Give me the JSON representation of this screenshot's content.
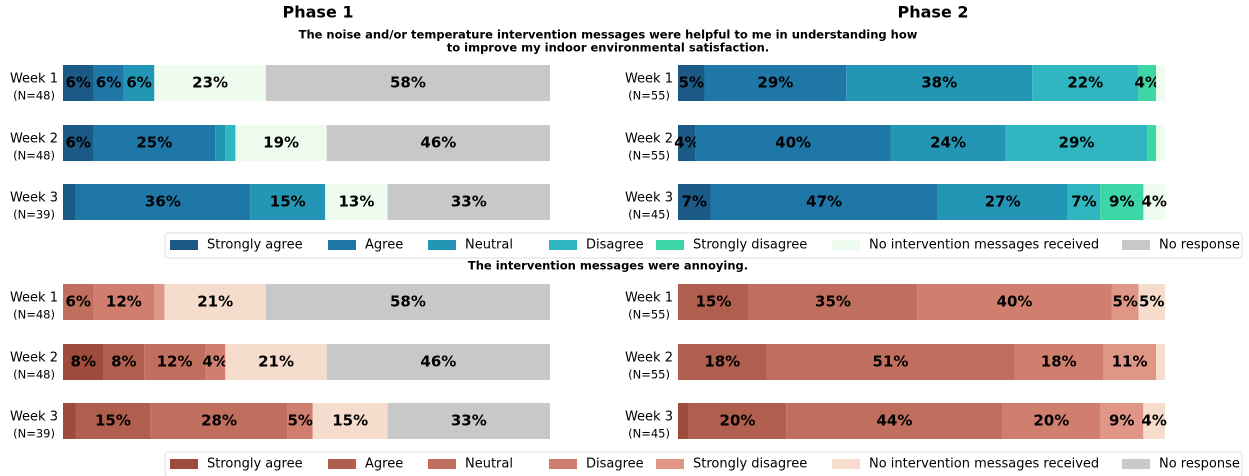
{
  "phases": [
    "Phase 1",
    "Phase 2"
  ],
  "questions": [
    [
      "The noise and/or temperature intervention messages were helpful to me in understanding how",
      "to improve my indoor environmental satisfaction."
    ],
    [
      "The intervention messages were annoying."
    ]
  ],
  "chart_data": [
    {
      "type": "bar",
      "orientation": "horizontal",
      "stacked": true,
      "xlim": [
        0,
        100
      ],
      "categories": [
        "Week 1",
        "Week 2",
        "Week 3"
      ],
      "n_labels": [
        "(N=48)",
        "(N=48)",
        "(N=39)"
      ],
      "series": [
        {
          "name": "Strongly agree",
          "color": "#1b5a85",
          "values": [
            6.25,
            6.25,
            2.56
          ],
          "value_labels": [
            "6%",
            "6%",
            null
          ]
        },
        {
          "name": "Agree",
          "color": "#1f77a8",
          "values": [
            6.25,
            25,
            35.9
          ],
          "value_labels": [
            "6%",
            "25%",
            "36%"
          ]
        },
        {
          "name": "Neutral",
          "color": "#2496b5",
          "values": [
            6.25,
            2.08,
            15.38
          ],
          "value_labels": [
            "6%",
            null,
            "15%"
          ]
        },
        {
          "name": "Disagree",
          "color": "#2fb6c0",
          "values": [
            0,
            2.08,
            0
          ],
          "value_labels": [
            null,
            null,
            null
          ]
        },
        {
          "name": "Strongly disagree",
          "color": "#3dd6a6",
          "values": [
            0,
            0,
            0
          ],
          "value_labels": [
            null,
            null,
            null
          ]
        },
        {
          "name": "No intervention messages received",
          "color": "#eefcef",
          "values": [
            22.92,
            18.75,
            12.82
          ],
          "value_labels": [
            "23%",
            "19%",
            "13%"
          ]
        },
        {
          "name": "No response",
          "color": "#c8c8c8",
          "values": [
            58.33,
            45.83,
            33.33
          ],
          "value_labels": [
            "58%",
            "46%",
            "33%"
          ]
        }
      ]
    },
    {
      "type": "bar",
      "orientation": "horizontal",
      "stacked": true,
      "xlim": [
        0,
        100
      ],
      "categories": [
        "Week 1",
        "Week 2",
        "Week 3"
      ],
      "n_labels": [
        "(N=55)",
        "(N=55)",
        "(N=45)"
      ],
      "series": [
        {
          "name": "Strongly agree",
          "color": "#1b5a85",
          "values": [
            5.45,
            3.64,
            6.67
          ],
          "value_labels": [
            "5%",
            "4%",
            "7%"
          ]
        },
        {
          "name": "Agree",
          "color": "#1f77a8",
          "values": [
            29.09,
            40,
            46.67
          ],
          "value_labels": [
            "29%",
            "40%",
            "47%"
          ]
        },
        {
          "name": "Neutral",
          "color": "#2496b5",
          "values": [
            38.18,
            23.64,
            26.67
          ],
          "value_labels": [
            "38%",
            "24%",
            "27%"
          ]
        },
        {
          "name": "Disagree",
          "color": "#2fb6c0",
          "values": [
            21.82,
            29.09,
            6.67
          ],
          "value_labels": [
            "22%",
            "29%",
            "7%"
          ]
        },
        {
          "name": "Strongly disagree",
          "color": "#3dd6a6",
          "values": [
            3.64,
            1.82,
            8.89
          ],
          "value_labels": [
            "4%",
            null,
            "9%"
          ]
        },
        {
          "name": "No intervention messages received",
          "color": "#eefcef",
          "values": [
            1.82,
            1.82,
            4.44
          ],
          "value_labels": [
            null,
            null,
            "4%"
          ]
        },
        {
          "name": "No response",
          "color": "#c8c8c8",
          "values": [
            0,
            0,
            0
          ],
          "value_labels": [
            null,
            null,
            null
          ]
        }
      ]
    },
    {
      "type": "bar",
      "orientation": "horizontal",
      "stacked": true,
      "xlim": [
        0,
        100
      ],
      "categories": [
        "Week 1",
        "Week 2",
        "Week 3"
      ],
      "n_labels": [
        "(N=48)",
        "(N=48)",
        "(N=39)"
      ],
      "series": [
        {
          "name": "Strongly agree",
          "color": "#9e4b3c",
          "values": [
            0,
            8.33,
            2.56
          ],
          "value_labels": [
            null,
            "8%",
            null
          ]
        },
        {
          "name": "Agree",
          "color": "#b05e4e",
          "values": [
            0,
            8.33,
            15.38
          ],
          "value_labels": [
            null,
            "8%",
            "15%"
          ]
        },
        {
          "name": "Neutral",
          "color": "#c06e5e",
          "values": [
            6.25,
            12.5,
            28.21
          ],
          "value_labels": [
            "6%",
            "12%",
            "28%"
          ]
        },
        {
          "name": "Disagree",
          "color": "#d07f6f",
          "values": [
            12.5,
            4.17,
            5.13
          ],
          "value_labels": [
            "12%",
            "4%",
            "5%"
          ]
        },
        {
          "name": "Strongly disagree",
          "color": "#df9686",
          "values": [
            2.08,
            0,
            0
          ],
          "value_labels": [
            null,
            null,
            null
          ]
        },
        {
          "name": "No intervention messages received",
          "color": "#f5dccd",
          "values": [
            20.83,
            20.83,
            15.38
          ],
          "value_labels": [
            "21%",
            "21%",
            "15%"
          ]
        },
        {
          "name": "No response",
          "color": "#c8c8c8",
          "values": [
            58.33,
            45.83,
            33.33
          ],
          "value_labels": [
            "58%",
            "46%",
            "33%"
          ]
        }
      ]
    },
    {
      "type": "bar",
      "orientation": "horizontal",
      "stacked": true,
      "xlim": [
        0,
        100
      ],
      "categories": [
        "Week 1",
        "Week 2",
        "Week 3"
      ],
      "n_labels": [
        "(N=55)",
        "(N=55)",
        "(N=45)"
      ],
      "series": [
        {
          "name": "Strongly agree",
          "color": "#9e4b3c",
          "values": [
            0,
            0,
            2.22
          ],
          "value_labels": [
            null,
            null,
            null
          ]
        },
        {
          "name": "Agree",
          "color": "#b05e4e",
          "values": [
            14.55,
            18.18,
            20
          ],
          "value_labels": [
            "15%",
            "18%",
            "20%"
          ]
        },
        {
          "name": "Neutral",
          "color": "#c06e5e",
          "values": [
            34.55,
            50.91,
            44.44
          ],
          "value_labels": [
            "35%",
            "51%",
            "44%"
          ]
        },
        {
          "name": "Disagree",
          "color": "#d07f6f",
          "values": [
            40,
            18.18,
            20
          ],
          "value_labels": [
            "40%",
            "18%",
            "20%"
          ]
        },
        {
          "name": "Strongly disagree",
          "color": "#df9686",
          "values": [
            5.45,
            10.91,
            8.89
          ],
          "value_labels": [
            "5%",
            "11%",
            "9%"
          ]
        },
        {
          "name": "No intervention messages received",
          "color": "#f5dccd",
          "values": [
            5.45,
            1.82,
            4.44
          ],
          "value_labels": [
            "5%",
            null,
            "4%"
          ]
        },
        {
          "name": "No response",
          "color": "#c8c8c8",
          "values": [
            0,
            0,
            0
          ],
          "value_labels": [
            null,
            null,
            null
          ]
        }
      ]
    }
  ]
}
